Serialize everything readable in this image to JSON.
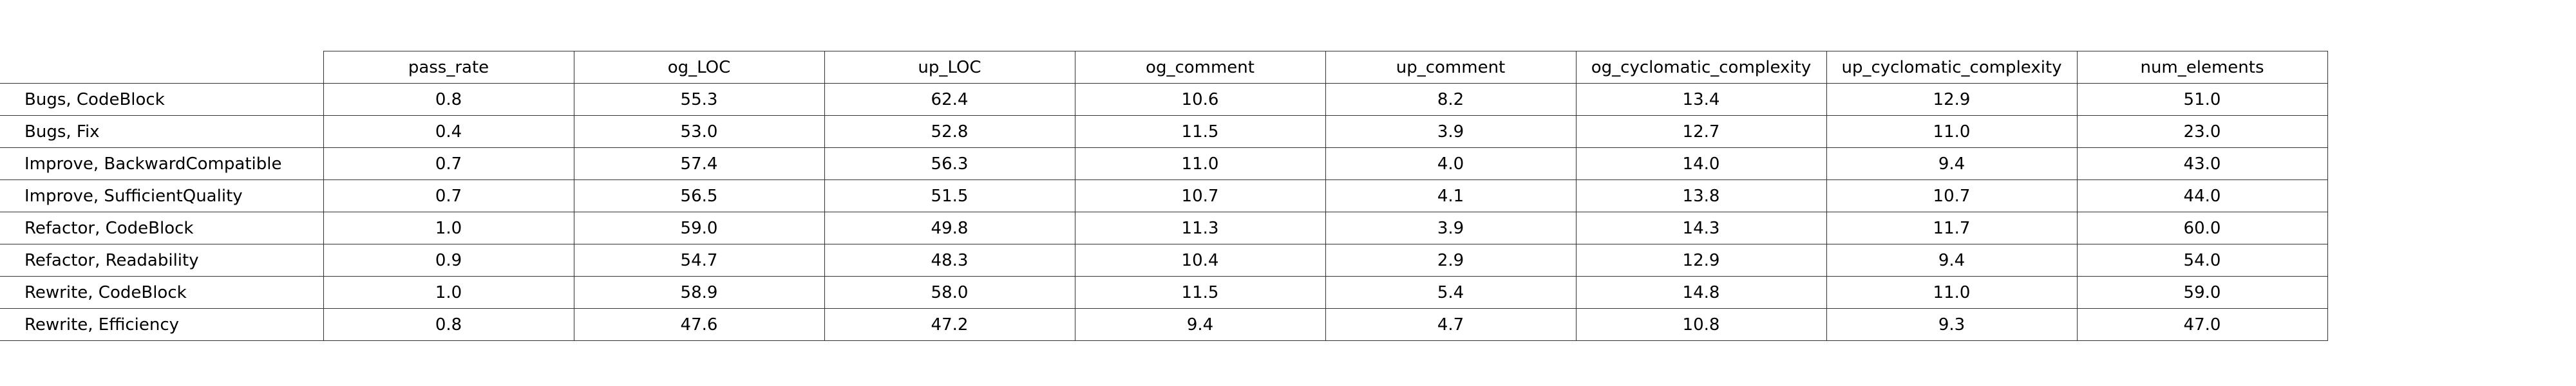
{
  "chart_data": {
    "type": "table",
    "columns": [
      "pass_rate",
      "og_LOC",
      "up_LOC",
      "og_comment",
      "up_comment",
      "og_cyclomatic_complexity",
      "up_cyclomatic_complexity",
      "num_elements"
    ],
    "rows": [
      {
        "label": "Bugs, CodeBlock",
        "values": [
          "0.8",
          "55.3",
          "62.4",
          "10.6",
          "8.2",
          "13.4",
          "12.9",
          "51.0"
        ]
      },
      {
        "label": "Bugs, Fix",
        "values": [
          "0.4",
          "53.0",
          "52.8",
          "11.5",
          "3.9",
          "12.7",
          "11.0",
          "23.0"
        ]
      },
      {
        "label": "Improve, BackwardCompatible",
        "values": [
          "0.7",
          "57.4",
          "56.3",
          "11.0",
          "4.0",
          "14.0",
          "9.4",
          "43.0"
        ]
      },
      {
        "label": "Improve, SufficientQuality",
        "values": [
          "0.7",
          "56.5",
          "51.5",
          "10.7",
          "4.1",
          "13.8",
          "10.7",
          "44.0"
        ]
      },
      {
        "label": "Refactor, CodeBlock",
        "values": [
          "1.0",
          "59.0",
          "49.8",
          "11.3",
          "3.9",
          "14.3",
          "11.7",
          "60.0"
        ]
      },
      {
        "label": "Refactor, Readability",
        "values": [
          "0.9",
          "54.7",
          "48.3",
          "10.4",
          "2.9",
          "12.9",
          "9.4",
          "54.0"
        ]
      },
      {
        "label": "Rewrite, CodeBlock",
        "values": [
          "1.0",
          "58.9",
          "58.0",
          "11.5",
          "5.4",
          "14.8",
          "11.0",
          "59.0"
        ]
      },
      {
        "label": "Rewrite, Efficiency",
        "values": [
          "0.8",
          "47.6",
          "47.2",
          "9.4",
          "4.7",
          "10.8",
          "9.3",
          "47.0"
        ]
      }
    ]
  }
}
